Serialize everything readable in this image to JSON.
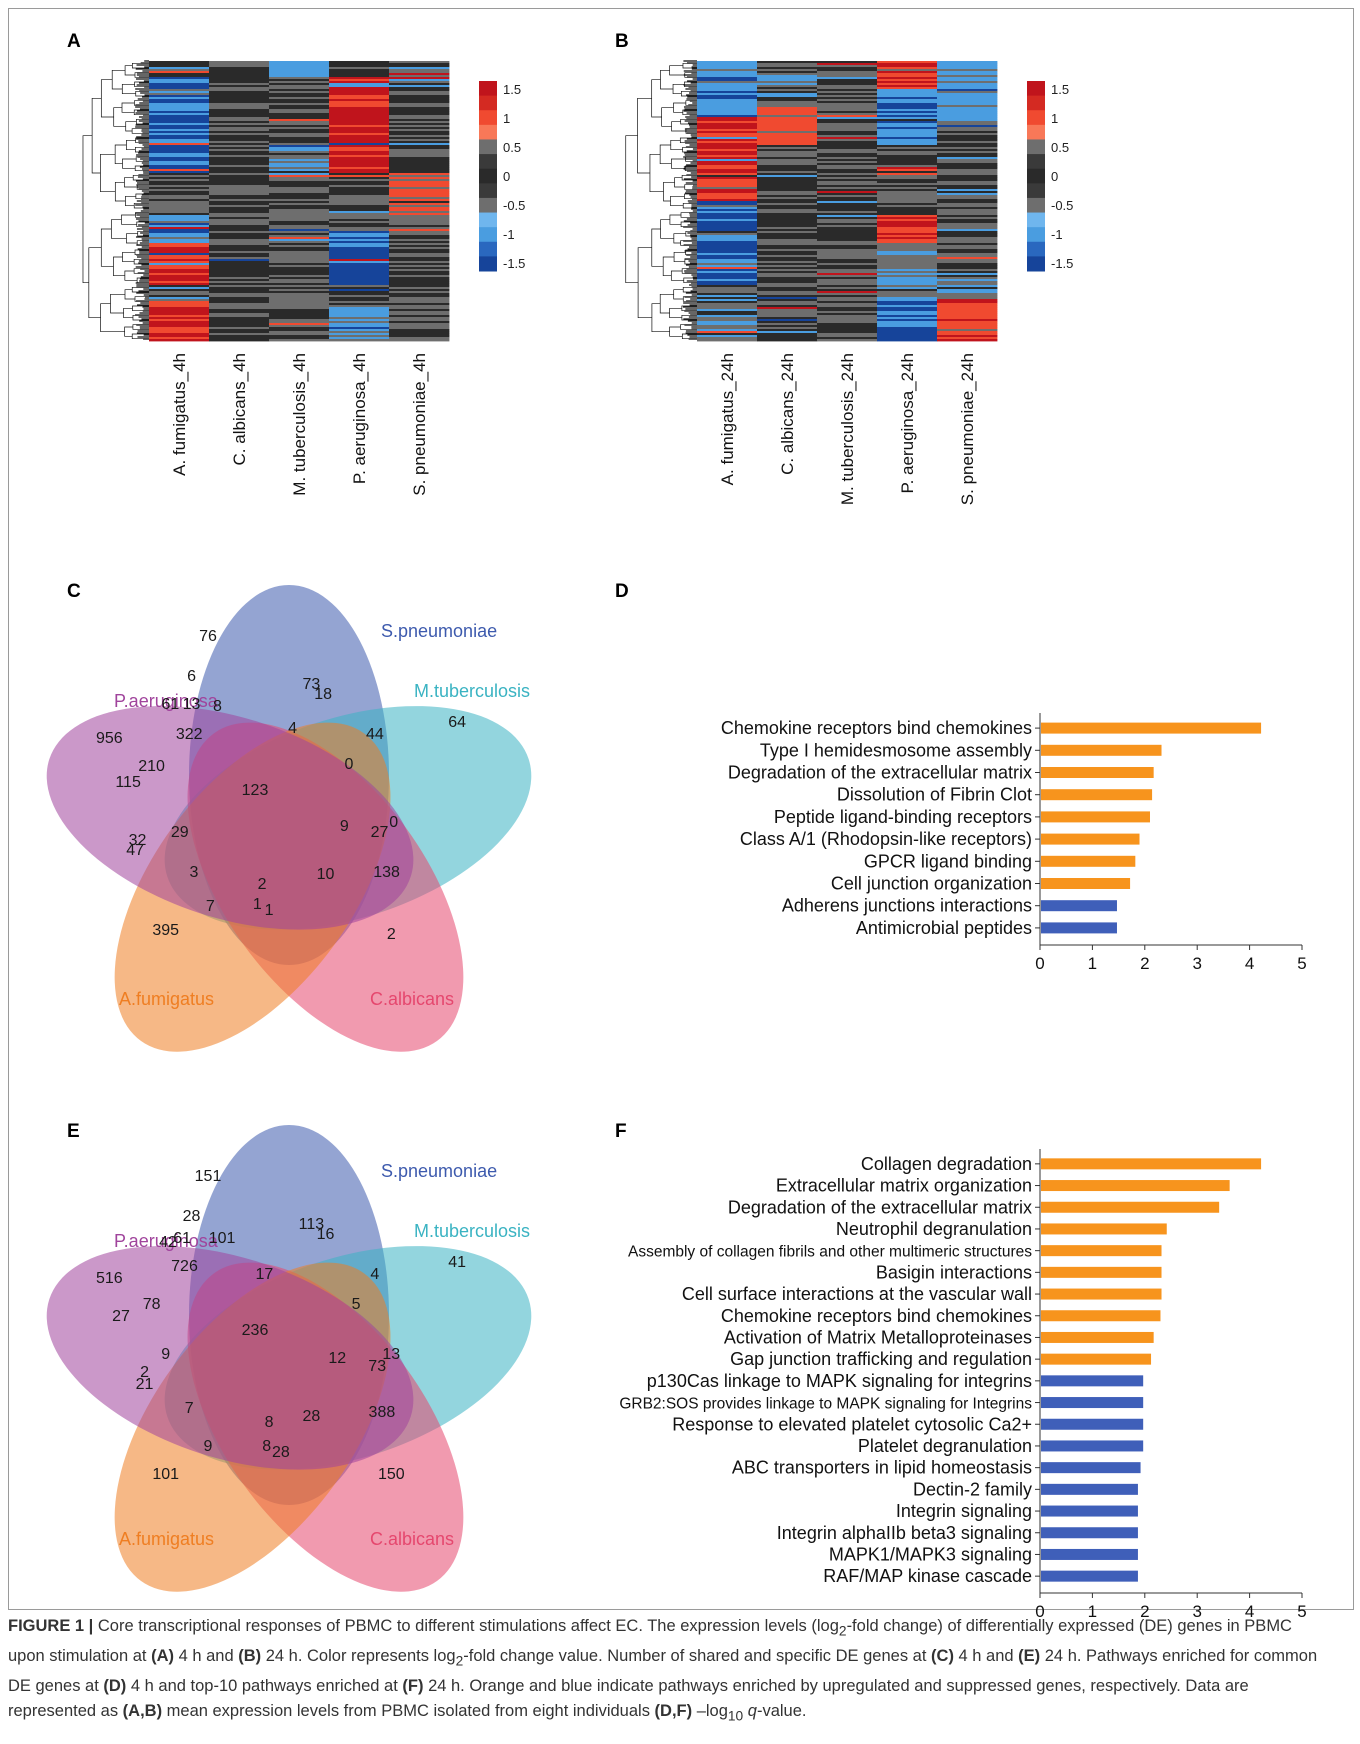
{
  "figure": {
    "panels": [
      "A",
      "B",
      "C",
      "D",
      "E",
      "F"
    ]
  },
  "chart_data": [
    {
      "panel": "A",
      "type": "heatmap",
      "columns": [
        "A. fumigatus_4h",
        "C. albicans_4h",
        "M. tuberculosis_4h",
        "P. aeruginosa_4h",
        "S. pneumoniae_4h"
      ],
      "colorbar_ticks": [
        "1.5",
        "1",
        "0.5",
        "0",
        "-0.5",
        "-1",
        "-1.5"
      ],
      "colorbar_values": [
        1.5,
        1,
        0.5,
        0,
        -0.5,
        -1,
        -1.5
      ],
      "color_range": [
        -1.5,
        1.5
      ],
      "colors": {
        "high": "#c0141c",
        "mid_high": "#f04a30",
        "mid": "#2a2a2a",
        "gray": "#6e6e6e",
        "mid_low": "#4a9de0",
        "low": "#16449a"
      },
      "blocks": [
        [
          [
            0.0,
            0.06,
            0.3
          ],
          [
            0.06,
            0.4,
            -1.3
          ],
          [
            0.4,
            0.55,
            0.0
          ],
          [
            0.55,
            0.65,
            -1.2
          ],
          [
            0.65,
            0.8,
            1.4
          ],
          [
            0.8,
            0.86,
            -0.4
          ],
          [
            0.86,
            1.0,
            1.2
          ]
        ],
        [
          [
            0.0,
            1.0,
            0.0
          ]
        ],
        [
          [
            0.0,
            0.06,
            -0.9
          ],
          [
            0.06,
            0.3,
            0.0
          ],
          [
            0.3,
            0.4,
            -0.6
          ],
          [
            0.4,
            1.0,
            0.0
          ]
        ],
        [
          [
            0.0,
            0.06,
            0.0
          ],
          [
            0.06,
            0.4,
            1.4
          ],
          [
            0.4,
            0.6,
            0.0
          ],
          [
            0.6,
            0.8,
            -1.3
          ],
          [
            0.8,
            0.88,
            0.0
          ],
          [
            0.88,
            1.0,
            -0.8
          ]
        ],
        [
          [
            0.0,
            0.1,
            -0.4
          ],
          [
            0.1,
            0.4,
            0.0
          ],
          [
            0.4,
            0.55,
            0.7
          ],
          [
            0.55,
            1.0,
            0.0
          ]
        ]
      ]
    },
    {
      "panel": "B",
      "type": "heatmap",
      "columns": [
        "A. fumigatus_24h",
        "C. albicans_24h",
        "M. tuberculosis_24h",
        "P. aeruginosa_24h",
        "S. pneumoniae_24h"
      ],
      "colorbar_ticks": [
        "1.5",
        "1",
        "0.5",
        "0",
        "-0.5",
        "-1",
        "-1.5"
      ],
      "colorbar_values": [
        1.5,
        1,
        0.5,
        0,
        -0.5,
        -1,
        -1.5
      ],
      "color_range": [
        -1.5,
        1.5
      ],
      "colors": {
        "high": "#c0141c",
        "mid_high": "#f04a30",
        "mid": "#2a2a2a",
        "gray": "#6e6e6e",
        "mid_low": "#4a9de0",
        "low": "#16449a"
      },
      "blocks": [
        [
          [
            0.0,
            0.2,
            -1.0
          ],
          [
            0.2,
            0.5,
            1.3
          ],
          [
            0.5,
            0.8,
            -1.3
          ],
          [
            0.8,
            1.0,
            -0.5
          ]
        ],
        [
          [
            0.0,
            0.15,
            -0.4
          ],
          [
            0.15,
            0.3,
            0.8
          ],
          [
            0.3,
            0.7,
            0.0
          ],
          [
            0.7,
            1.0,
            0.0
          ]
        ],
        [
          [
            0.0,
            1.0,
            0.0
          ]
        ],
        [
          [
            0.0,
            0.1,
            1.3
          ],
          [
            0.1,
            0.3,
            -1.0
          ],
          [
            0.3,
            0.55,
            0.0
          ],
          [
            0.55,
            0.65,
            1.2
          ],
          [
            0.65,
            0.85,
            -0.6
          ],
          [
            0.85,
            1.0,
            -1.2
          ]
        ],
        [
          [
            0.0,
            0.25,
            -0.8
          ],
          [
            0.25,
            0.7,
            0.0
          ],
          [
            0.7,
            0.85,
            -0.3
          ],
          [
            0.85,
            1.0,
            1.2
          ]
        ]
      ]
    },
    {
      "panel": "C",
      "type": "venn",
      "sets": [
        {
          "name": "S.pneumoniae",
          "color": "#3d5aad"
        },
        {
          "name": "M.tuberculosis",
          "color": "#3ab3c2"
        },
        {
          "name": "C.albicans",
          "color": "#e5476e"
        },
        {
          "name": "A.fumigatus",
          "color": "#ef7e22"
        },
        {
          "name": "P.aeruginosa",
          "color": "#a0449c"
        }
      ],
      "counts": [
        {
          "label": "76",
          "pos": [
            0.3,
            0.055
          ]
        },
        {
          "label": "64",
          "pos": [
            0.83,
            0.27
          ]
        },
        {
          "label": "2",
          "pos": [
            0.69,
            0.8
          ]
        },
        {
          "label": "395",
          "pos": [
            0.21,
            0.79
          ]
        },
        {
          "label": "956",
          "pos": [
            0.09,
            0.31
          ]
        },
        {
          "label": "6",
          "pos": [
            0.265,
            0.155
          ]
        },
        {
          "label": "73",
          "pos": [
            0.52,
            0.175
          ]
        },
        {
          "label": "18",
          "pos": [
            0.545,
            0.2
          ]
        },
        {
          "label": "61",
          "pos": [
            0.22,
            0.225
          ]
        },
        {
          "label": "13",
          "pos": [
            0.265,
            0.225
          ]
        },
        {
          "label": "8",
          "pos": [
            0.32,
            0.23
          ]
        },
        {
          "label": "322",
          "pos": [
            0.26,
            0.3
          ]
        },
        {
          "label": "44",
          "pos": [
            0.655,
            0.3
          ]
        },
        {
          "label": "4",
          "pos": [
            0.48,
            0.285
          ]
        },
        {
          "label": "210",
          "pos": [
            0.18,
            0.38
          ]
        },
        {
          "label": "0",
          "pos": [
            0.6,
            0.375
          ]
        },
        {
          "label": "115",
          "pos": [
            0.13,
            0.42
          ]
        },
        {
          "label": "123",
          "pos": [
            0.4,
            0.44
          ]
        },
        {
          "label": "9",
          "pos": [
            0.59,
            0.53
          ]
        },
        {
          "label": "0",
          "pos": [
            0.695,
            0.52
          ]
        },
        {
          "label": "27",
          "pos": [
            0.665,
            0.545
          ]
        },
        {
          "label": "32",
          "pos": [
            0.15,
            0.565
          ]
        },
        {
          "label": "29",
          "pos": [
            0.24,
            0.545
          ]
        },
        {
          "label": "47",
          "pos": [
            0.145,
            0.59
          ]
        },
        {
          "label": "3",
          "pos": [
            0.27,
            0.645
          ]
        },
        {
          "label": "2",
          "pos": [
            0.415,
            0.675
          ]
        },
        {
          "label": "10",
          "pos": [
            0.55,
            0.65
          ]
        },
        {
          "label": "138",
          "pos": [
            0.68,
            0.645
          ]
        },
        {
          "label": "7",
          "pos": [
            0.305,
            0.73
          ]
        },
        {
          "label": "1",
          "pos": [
            0.405,
            0.725
          ]
        },
        {
          "label": "1",
          "pos": [
            0.43,
            0.74
          ]
        }
      ]
    },
    {
      "panel": "D",
      "type": "bar",
      "orientation": "horizontal",
      "categories": [
        "Chemokine receptors bind chemokines",
        "Type I hemidesmosome assembly",
        "Degradation of the extracellular matrix",
        "Dissolution of Fibrin Clot",
        "Peptide ligand-binding receptors",
        "Class A/1 (Rhodopsin-like receptors)",
        "GPCR ligand binding",
        "Cell junction organization",
        "Adherens junctions interactions",
        "Antimicrobial peptides"
      ],
      "values": [
        4.2,
        2.3,
        2.15,
        2.12,
        2.08,
        1.88,
        1.8,
        1.7,
        1.45,
        1.45
      ],
      "bar_colors": [
        "#f7941d",
        "#f7941d",
        "#f7941d",
        "#f7941d",
        "#f7941d",
        "#f7941d",
        "#f7941d",
        "#f7941d",
        "#3f5fb9",
        "#3f5fb9"
      ],
      "xlim": [
        0,
        5
      ],
      "xticks": [
        0,
        1,
        2,
        3,
        4,
        5
      ]
    },
    {
      "panel": "E",
      "type": "venn",
      "sets": [
        {
          "name": "S.pneumoniae",
          "color": "#3d5aad"
        },
        {
          "name": "M.tuberculosis",
          "color": "#3ab3c2"
        },
        {
          "name": "C.albicans",
          "color": "#e5476e"
        },
        {
          "name": "A.fumigatus",
          "color": "#ef7e22"
        },
        {
          "name": "P.aeruginosa",
          "color": "#a0449c"
        }
      ],
      "counts": [
        {
          "label": "151",
          "pos": [
            0.3,
            0.055
          ]
        },
        {
          "label": "41",
          "pos": [
            0.83,
            0.27
          ]
        },
        {
          "label": "150",
          "pos": [
            0.69,
            0.8
          ]
        },
        {
          "label": "101",
          "pos": [
            0.21,
            0.8
          ]
        },
        {
          "label": "516",
          "pos": [
            0.09,
            0.31
          ]
        },
        {
          "label": "28",
          "pos": [
            0.265,
            0.155
          ]
        },
        {
          "label": "113",
          "pos": [
            0.52,
            0.175
          ]
        },
        {
          "label": "16",
          "pos": [
            0.55,
            0.2
          ]
        },
        {
          "label": "42",
          "pos": [
            0.215,
            0.22
          ]
        },
        {
          "label": "61",
          "pos": [
            0.245,
            0.21
          ]
        },
        {
          "label": "101",
          "pos": [
            0.33,
            0.21
          ]
        },
        {
          "label": "726",
          "pos": [
            0.25,
            0.28
          ]
        },
        {
          "label": "17",
          "pos": [
            0.42,
            0.3
          ]
        },
        {
          "label": "4",
          "pos": [
            0.655,
            0.3
          ]
        },
        {
          "label": "78",
          "pos": [
            0.18,
            0.375
          ]
        },
        {
          "label": "5",
          "pos": [
            0.615,
            0.375
          ]
        },
        {
          "label": "27",
          "pos": [
            0.115,
            0.405
          ]
        },
        {
          "label": "236",
          "pos": [
            0.4,
            0.44
          ]
        },
        {
          "label": "9",
          "pos": [
            0.21,
            0.5
          ]
        },
        {
          "label": "12",
          "pos": [
            0.575,
            0.51
          ]
        },
        {
          "label": "13",
          "pos": [
            0.69,
            0.5
          ]
        },
        {
          "label": "73",
          "pos": [
            0.66,
            0.53
          ]
        },
        {
          "label": "2",
          "pos": [
            0.165,
            0.545
          ]
        },
        {
          "label": "21",
          "pos": [
            0.165,
            0.575
          ]
        },
        {
          "label": "7",
          "pos": [
            0.26,
            0.635
          ]
        },
        {
          "label": "8",
          "pos": [
            0.43,
            0.67
          ]
        },
        {
          "label": "28",
          "pos": [
            0.52,
            0.655
          ]
        },
        {
          "label": "388",
          "pos": [
            0.67,
            0.645
          ]
        },
        {
          "label": "9",
          "pos": [
            0.3,
            0.73
          ]
        },
        {
          "label": "8",
          "pos": [
            0.425,
            0.73
          ]
        },
        {
          "label": "28",
          "pos": [
            0.455,
            0.745
          ]
        }
      ]
    },
    {
      "panel": "F",
      "type": "bar",
      "orientation": "horizontal",
      "categories": [
        "Collagen degradation",
        "Extracellular matrix organization",
        "Degradation of the extracellular matrix",
        "Neutrophil degranulation",
        "Assembly of collagen fibrils and other multimeric structures",
        "Basigin interactions",
        "Cell surface interactions at the vascular wall",
        "Chemokine receptors bind chemokines",
        "Activation of Matrix Metalloproteinases",
        "Gap junction trafficking and regulation",
        "p130Cas linkage to MAPK signaling for integrins",
        "GRB2:SOS provides linkage to MAPK signaling for Integrins",
        "Response to elevated platelet cytosolic Ca2+",
        "Platelet degranulation",
        "ABC transporters in lipid homeostasis",
        "Dectin-2 family",
        "Integrin signaling",
        "Integrin alphaIIb beta3 signaling",
        "MAPK1/MAPK3 signaling",
        "RAF/MAP kinase cascade"
      ],
      "values": [
        4.2,
        3.6,
        3.4,
        2.4,
        2.3,
        2.3,
        2.3,
        2.28,
        2.15,
        2.1,
        1.95,
        1.95,
        1.95,
        1.95,
        1.9,
        1.85,
        1.85,
        1.85,
        1.85,
        1.85
      ],
      "bar_colors": [
        "#f7941d",
        "#f7941d",
        "#f7941d",
        "#f7941d",
        "#f7941d",
        "#f7941d",
        "#f7941d",
        "#f7941d",
        "#f7941d",
        "#f7941d",
        "#3f5fb9",
        "#3f5fb9",
        "#3f5fb9",
        "#3f5fb9",
        "#3f5fb9",
        "#3f5fb9",
        "#3f5fb9",
        "#3f5fb9",
        "#3f5fb9",
        "#3f5fb9"
      ],
      "xlim": [
        0,
        5
      ],
      "xticks": [
        0,
        1,
        2,
        3,
        4,
        5
      ]
    }
  ],
  "caption": {
    "label": "FIGURE 1 |",
    "t1": " Core transcriptional responses of PBMC to different stimulations affect EC. The expression levels (log",
    "sub1": "2",
    "t2": "-fold change) of differentially expressed (DE) genes in PBMC upon stimulation at ",
    "b1": "(A)",
    "t3": " 4 h and ",
    "b2": "(B)",
    "t4": " 24 h. Color represents log",
    "sub2": "2",
    "t5": "-fold change value. Number of shared and specific DE genes at ",
    "b3": "(C)",
    "t6": " 4 h and ",
    "b4": "(E)",
    "t7": " 24 h. Pathways enriched for common DE genes at ",
    "b5": "(D)",
    "t8": " 4 h and top-10 pathways enriched at ",
    "b6": "(F)",
    "t9": " 24 h. Orange and blue indicate pathways enriched by upregulated and suppressed genes, respectively. Data are represented as ",
    "b7": "(A,B)",
    "t10": " mean expression levels from PBMC isolated from eight individuals ",
    "b8": "(D,F)",
    "t11": " –log",
    "sub3": "10",
    "t12": " ",
    "q": "q",
    "t13": "-value."
  }
}
